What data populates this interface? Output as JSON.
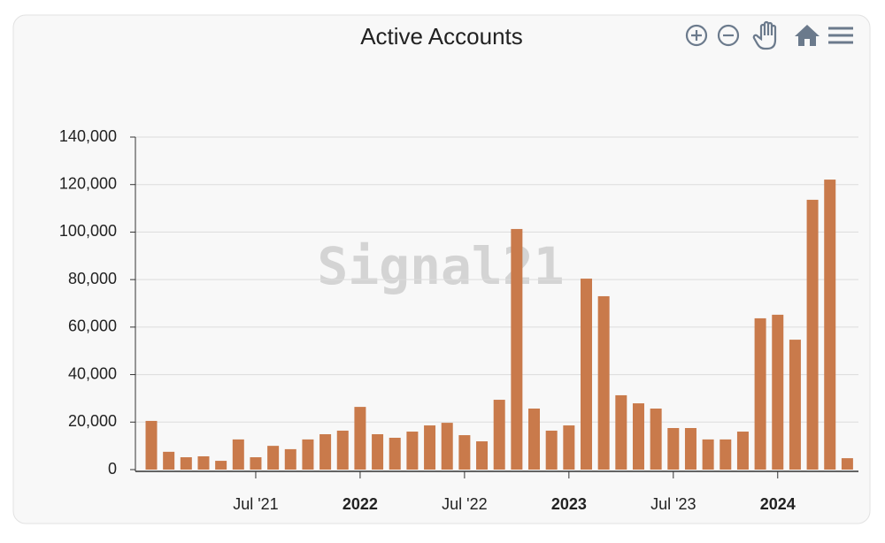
{
  "chart_data": {
    "type": "bar",
    "title": "Active Accounts",
    "watermark": "Signal21",
    "categories": [
      null,
      null,
      null,
      null,
      null,
      null,
      "Jul '21",
      null,
      null,
      null,
      null,
      null,
      "2022",
      null,
      null,
      null,
      null,
      null,
      "Jul '22",
      null,
      null,
      null,
      null,
      null,
      "2023",
      null,
      null,
      null,
      null,
      null,
      "Jul '23",
      null,
      null,
      null,
      null,
      null,
      "2024",
      null,
      null,
      null,
      null
    ],
    "values": [
      20500,
      7500,
      5200,
      5600,
      3700,
      12700,
      5200,
      10000,
      8600,
      12700,
      14900,
      16400,
      26400,
      14900,
      13400,
      16000,
      18600,
      19700,
      14500,
      11900,
      29400,
      101300,
      25700,
      16400,
      18600,
      80400,
      73000,
      31300,
      27900,
      25700,
      17500,
      17500,
      12700,
      12700,
      16000,
      63700,
      65200,
      54700,
      113600,
      122100,
      4800
    ],
    "color": "#c97a4b",
    "ylim": [
      0,
      140000
    ],
    "yticks": [
      0,
      {
        "value": 20000,
        "label": "20,000"
      },
      {
        "value": 40000,
        "label": "40,000"
      },
      {
        "value": 60000,
        "label": "60,000"
      },
      {
        "value": 80000,
        "label": "80,000"
      },
      {
        "value": 100000,
        "label": "100,000"
      },
      {
        "value": 120000,
        "label": "120,000"
      },
      {
        "value": 140000,
        "label": "140,000"
      }
    ],
    "grid": true
  }
}
